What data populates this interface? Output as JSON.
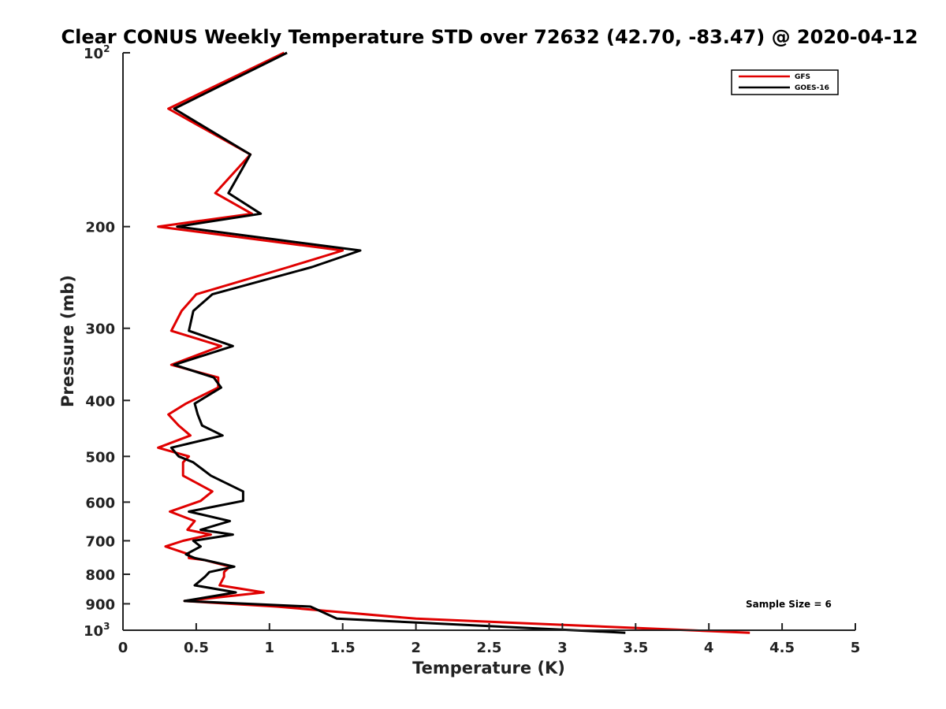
{
  "chart_data": {
    "type": "line",
    "title": "Clear CONUS Weekly Temperature STD over 72632 (42.70, -83.47) @ 2020-04-12",
    "xlabel": "Temperature (K)",
    "ylabel": "Pressure (mb)",
    "xlim": [
      0,
      5
    ],
    "ylim": [
      100,
      1000
    ],
    "y_scale": "log",
    "y_reversed": true,
    "x_ticks": [
      "0",
      "0.5",
      "1",
      "1.5",
      "2",
      "2.5",
      "3",
      "3.5",
      "4",
      "4.5",
      "5"
    ],
    "y_ticks": [
      {
        "value": 100,
        "base": "10",
        "exp": "2"
      },
      {
        "value": 200,
        "label": "200"
      },
      {
        "value": 300,
        "label": "300"
      },
      {
        "value": 400,
        "label": "400"
      },
      {
        "value": 500,
        "label": "500"
      },
      {
        "value": 600,
        "label": "600"
      },
      {
        "value": 700,
        "label": "700"
      },
      {
        "value": 800,
        "label": "800"
      },
      {
        "value": 900,
        "label": "900"
      },
      {
        "value": 1000,
        "base": "10",
        "exp": "3"
      }
    ],
    "grid": false,
    "legend_position": "top-right",
    "annotation": "Sample Size = 6",
    "series": [
      {
        "name": "GFS",
        "color": "#e00000",
        "points": [
          [
            1.1,
            100
          ],
          [
            0.31,
            125
          ],
          [
            0.87,
            150
          ],
          [
            0.63,
            175
          ],
          [
            0.88,
            190
          ],
          [
            0.24,
            200
          ],
          [
            1.5,
            220
          ],
          [
            1.13,
            235
          ],
          [
            0.5,
            262
          ],
          [
            0.4,
            280
          ],
          [
            0.33,
            303
          ],
          [
            0.67,
            322
          ],
          [
            0.33,
            347
          ],
          [
            0.65,
            365
          ],
          [
            0.65,
            380
          ],
          [
            0.43,
            405
          ],
          [
            0.31,
            423
          ],
          [
            0.38,
            442
          ],
          [
            0.46,
            460
          ],
          [
            0.24,
            483
          ],
          [
            0.45,
            500
          ],
          [
            0.41,
            512
          ],
          [
            0.41,
            540
          ],
          [
            0.61,
            575
          ],
          [
            0.53,
            597
          ],
          [
            0.32,
            623
          ],
          [
            0.49,
            647
          ],
          [
            0.44,
            670
          ],
          [
            0.6,
            683
          ],
          [
            0.41,
            700
          ],
          [
            0.29,
            716
          ],
          [
            0.45,
            739
          ],
          [
            0.45,
            750
          ],
          [
            0.56,
            756
          ],
          [
            0.73,
            776
          ],
          [
            0.69,
            793
          ],
          [
            0.69,
            808
          ],
          [
            0.66,
            836
          ],
          [
            0.96,
            860
          ],
          [
            0.42,
            890
          ],
          [
            1.05,
            910
          ],
          [
            2.0,
            955
          ],
          [
            4.28,
            1010
          ]
        ]
      },
      {
        "name": "GOES-16",
        "color": "#000000",
        "points": [
          [
            1.12,
            100
          ],
          [
            0.35,
            125
          ],
          [
            0.87,
            150
          ],
          [
            0.72,
            175
          ],
          [
            0.94,
            190
          ],
          [
            0.37,
            200
          ],
          [
            1.62,
            220
          ],
          [
            1.29,
            235
          ],
          [
            0.61,
            262
          ],
          [
            0.48,
            280
          ],
          [
            0.45,
            303
          ],
          [
            0.75,
            322
          ],
          [
            0.35,
            347
          ],
          [
            0.62,
            365
          ],
          [
            0.67,
            380
          ],
          [
            0.49,
            405
          ],
          [
            0.51,
            423
          ],
          [
            0.54,
            442
          ],
          [
            0.68,
            460
          ],
          [
            0.33,
            483
          ],
          [
            0.38,
            500
          ],
          [
            0.48,
            512
          ],
          [
            0.6,
            540
          ],
          [
            0.82,
            575
          ],
          [
            0.82,
            597
          ],
          [
            0.45,
            623
          ],
          [
            0.73,
            647
          ],
          [
            0.53,
            670
          ],
          [
            0.75,
            683
          ],
          [
            0.48,
            700
          ],
          [
            0.53,
            716
          ],
          [
            0.43,
            739
          ],
          [
            0.49,
            750
          ],
          [
            0.56,
            756
          ],
          [
            0.76,
            776
          ],
          [
            0.59,
            793
          ],
          [
            0.56,
            808
          ],
          [
            0.49,
            836
          ],
          [
            0.77,
            860
          ],
          [
            0.42,
            890
          ],
          [
            1.28,
            910
          ],
          [
            1.46,
            955
          ],
          [
            3.43,
            1010
          ]
        ]
      }
    ]
  }
}
